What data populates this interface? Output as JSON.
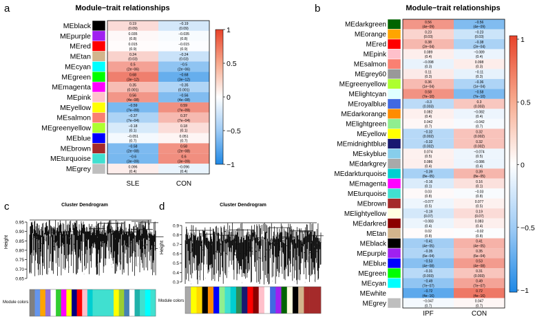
{
  "panels": {
    "a": {
      "letter": "a",
      "title": "Module−trait relationships",
      "columns": [
        "SLE",
        "CON"
      ],
      "legend_ticks": [
        "1",
        "0.5",
        "0",
        "−0.5",
        "−1"
      ],
      "rows": [
        {
          "module": "MEblack",
          "color": "#000000",
          "v": [
            [
              0.19,
              "0.19",
              "(0.09)"
            ],
            [
              -0.19,
              "−0.19",
              "(0.09)"
            ]
          ]
        },
        {
          "module": "MEpurple",
          "color": "#a020f0",
          "v": [
            [
              0.035,
              "0.035",
              "(0.8)"
            ],
            [
              -0.035,
              "−0.035",
              "(0.8)"
            ]
          ]
        },
        {
          "module": "MEred",
          "color": "#ff0000",
          "v": [
            [
              0.015,
              "0.015",
              "(0.9)"
            ],
            [
              -0.015,
              "−0.015",
              "(0.9)"
            ]
          ]
        },
        {
          "module": "MEtan",
          "color": "#d2b48c",
          "v": [
            [
              0.24,
              "0.24",
              "(0.03)"
            ],
            [
              -0.24,
              "−0.24",
              "(0.03)"
            ]
          ]
        },
        {
          "module": "MEcyan",
          "color": "#00ffff",
          "v": [
            [
              0.5,
              "0.5",
              "(2e−06)"
            ],
            [
              -0.5,
              "−0.5",
              "(2e−06)"
            ]
          ]
        },
        {
          "module": "MEgreen",
          "color": "#00ff00",
          "v": [
            [
              0.68,
              "0.68",
              "(3e−12)"
            ],
            [
              -0.68,
              "−0.68",
              "(3e−12)"
            ]
          ]
        },
        {
          "module": "MEmagenta",
          "color": "#ff00ff",
          "v": [
            [
              0.35,
              "0.35",
              "(0.001)"
            ],
            [
              -0.35,
              "−0.35",
              "(0.001)"
            ]
          ]
        },
        {
          "module": "MEpink",
          "color": "#ffc0cb",
          "v": [
            [
              0.56,
              "0.56",
              "(4e−08)"
            ],
            [
              -0.56,
              "−0.56",
              "(4e−08)"
            ]
          ]
        },
        {
          "module": "MEyellow",
          "color": "#ffff00",
          "v": [
            [
              -0.59,
              "−0.59",
              "(7e−09)"
            ],
            [
              0.59,
              "0.59",
              "(7e−09)"
            ]
          ]
        },
        {
          "module": "MEsalmon",
          "color": "#fa8072",
          "v": [
            [
              -0.37,
              "−0.37",
              "(7e−04)"
            ],
            [
              0.37,
              "0.37",
              "(7e−04)"
            ]
          ]
        },
        {
          "module": "MEgreenyellow",
          "color": "#adff2f",
          "v": [
            [
              -0.18,
              "−0.18",
              "(0.1)"
            ],
            [
              0.18,
              "0.18",
              "(0.1)"
            ]
          ]
        },
        {
          "module": "MEblue",
          "color": "#0000ff",
          "v": [
            [
              -0.051,
              "−0.051",
              "(0.7)"
            ],
            [
              0.051,
              "0.051",
              "(0.7)"
            ]
          ]
        },
        {
          "module": "MEbrown",
          "color": "#a52a2a",
          "v": [
            [
              -0.58,
              "−0.58",
              "(2e−08)"
            ],
            [
              0.58,
              "0.58",
              "(2e−08)"
            ]
          ]
        },
        {
          "module": "MEturquoise",
          "color": "#40e0d0",
          "v": [
            [
              -0.6,
              "−0.6",
              "(3e−09)"
            ],
            [
              0.6,
              "0.6",
              "(3e−09)"
            ]
          ]
        },
        {
          "module": "MEgrey",
          "color": "#bebebe",
          "v": [
            [
              0.096,
              "0.096",
              "(0.4)"
            ],
            [
              -0.096,
              "−0.096",
              "(0.4)"
            ]
          ]
        }
      ]
    },
    "b": {
      "letter": "b",
      "title": "Module−trait relationships",
      "columns": [
        "IPF",
        "CON"
      ],
      "legend_ticks": [
        "1",
        "0.5",
        "0",
        "−0.5",
        "−1"
      ],
      "rows": [
        {
          "module": "MEdarkgreen",
          "color": "#006400",
          "v": [
            [
              0.56,
              "0.56",
              "(4e−09)"
            ],
            [
              -0.56,
              "−0.56",
              "(4e−09)"
            ]
          ]
        },
        {
          "module": "MEorange",
          "color": "#ffa500",
          "v": [
            [
              0.23,
              "0.23",
              "(0.03)"
            ],
            [
              -0.23,
              "−0.23",
              "(0.03)"
            ]
          ]
        },
        {
          "module": "MEred",
          "color": "#ff0000",
          "v": [
            [
              0.38,
              "0.38",
              "(2e−04)"
            ],
            [
              -0.38,
              "−0.38",
              "(2e−04)"
            ]
          ]
        },
        {
          "module": "MEpink",
          "color": "#ffc0cb",
          "v": [
            [
              0.089,
              "0.089",
              "(0.4)"
            ],
            [
              -0.089,
              "−0.089",
              "(0.4)"
            ]
          ]
        },
        {
          "module": "MEsalmon",
          "color": "#fa8072",
          "v": [
            [
              -0.098,
              "−0.098",
              "(0.3)"
            ],
            [
              0.098,
              "0.098",
              "(0.3)"
            ]
          ]
        },
        {
          "module": "MEgrey60",
          "color": "#999999",
          "v": [
            [
              0.11,
              "0.11",
              "(0.3)"
            ],
            [
              -0.11,
              "−0.11",
              "(0.3)"
            ]
          ]
        },
        {
          "module": "MEgreenyellow",
          "color": "#adff2f",
          "v": [
            [
              0.36,
              "0.36",
              "(1e−04)"
            ],
            [
              -0.36,
              "−0.36",
              "(1e−04)"
            ]
          ]
        },
        {
          "module": "MElightcyan",
          "color": "#e0ffff",
          "v": [
            [
              0.58,
              "0.58",
              "(7e−10)"
            ],
            [
              -0.58,
              "−0.58",
              "(7e−10)"
            ]
          ]
        },
        {
          "module": "MEroyalblue",
          "color": "#4169e1",
          "v": [
            [
              -0.3,
              "−0.3",
              "(0.003)"
            ],
            [
              0.3,
              "0.3",
              "(0.003)"
            ]
          ]
        },
        {
          "module": "MEdarkorange",
          "color": "#ff8c00",
          "v": [
            [
              0.082,
              "0.082",
              "(0.4)"
            ],
            [
              -0.082,
              "−0.082",
              "(0.4)"
            ]
          ]
        },
        {
          "module": "MElightgreen",
          "color": "#90ee90",
          "v": [
            [
              0.042,
              "0.042",
              "(0.7)"
            ],
            [
              -0.042,
              "−0.042",
              "(0.7)"
            ]
          ]
        },
        {
          "module": "MEyellow",
          "color": "#ffff00",
          "v": [
            [
              -0.32,
              "−0.32",
              "(0.002)"
            ],
            [
              0.32,
              "0.32",
              "(0.002)"
            ]
          ]
        },
        {
          "module": "MEmidnightblue",
          "color": "#191970",
          "v": [
            [
              -0.32,
              "−0.32",
              "(0.002)"
            ],
            [
              0.32,
              "0.32",
              "(0.002)"
            ]
          ]
        },
        {
          "module": "MEskyblue",
          "color": "#87ceeb",
          "v": [
            [
              0.074,
              "0.074",
              "(0.5)"
            ],
            [
              -0.074,
              "−0.074",
              "(0.5)"
            ]
          ]
        },
        {
          "module": "MEdarkgrey",
          "color": "#a9a9a9",
          "v": [
            [
              0.086,
              "0.086",
              "(0.4)"
            ],
            [
              -0.086,
              "−0.086",
              "(0.4)"
            ]
          ]
        },
        {
          "module": "MEdarkturquoise",
          "color": "#00ced1",
          "v": [
            [
              -0.39,
              "−0.39",
              "(8e−05)"
            ],
            [
              0.39,
              "0.39",
              "(8e−05)"
            ]
          ]
        },
        {
          "module": "MEmagenta",
          "color": "#ff00ff",
          "v": [
            [
              -0.16,
              "−0.16",
              "(0.1)"
            ],
            [
              0.16,
              "0.16",
              "(0.1)"
            ]
          ]
        },
        {
          "module": "MEturquoise",
          "color": "#40e0d0",
          "v": [
            [
              0.03,
              "0.03",
              "(0.8)"
            ],
            [
              -0.03,
              "−0.03",
              "(0.8)"
            ]
          ]
        },
        {
          "module": "MEbrown",
          "color": "#a52a2a",
          "v": [
            [
              -0.077,
              "−0.077",
              "(0.5)"
            ],
            [
              0.077,
              "0.077",
              "(0.5)"
            ]
          ]
        },
        {
          "module": "MElightyellow",
          "color": "#ffffe0",
          "v": [
            [
              -0.19,
              "−0.19",
              "(0.07)"
            ],
            [
              0.19,
              "0.19",
              "(0.07)"
            ]
          ]
        },
        {
          "module": "MEdarkred",
          "color": "#8b0000",
          "v": [
            [
              -0.083,
              "−0.083",
              "(0.4)"
            ],
            [
              0.083,
              "0.083",
              "(0.4)"
            ]
          ]
        },
        {
          "module": "MEtan",
          "color": "#d2b48c",
          "v": [
            [
              0.02,
              "0.02",
              "(0.8)"
            ],
            [
              -0.02,
              "−0.02",
              "(0.8)"
            ]
          ]
        },
        {
          "module": "MEblack",
          "color": "#000000",
          "v": [
            [
              -0.41,
              "−0.41",
              "(4e−05)"
            ],
            [
              0.41,
              "0.41",
              "(4e−05)"
            ]
          ]
        },
        {
          "module": "MEpurple",
          "color": "#a020f0",
          "v": [
            [
              -0.35,
              "−0.35",
              "(6e−04)"
            ],
            [
              0.35,
              "0.35",
              "(6e−04)"
            ]
          ]
        },
        {
          "module": "MEblue",
          "color": "#0000ff",
          "v": [
            [
              -0.53,
              "−0.53",
              "(4e−08)"
            ],
            [
              0.53,
              "0.53",
              "(4e−08)"
            ]
          ]
        },
        {
          "module": "MEgreen",
          "color": "#00ff00",
          "v": [
            [
              -0.31,
              "−0.31",
              "(0.003)"
            ],
            [
              0.31,
              "0.31",
              "(0.003)"
            ]
          ]
        },
        {
          "module": "MEcyan",
          "color": "#00ffff",
          "v": [
            [
              -0.49,
              "−0.49",
              "(7e−07)"
            ],
            [
              0.49,
              "0.49",
              "(7e−07)"
            ]
          ]
        },
        {
          "module": "MEwhite",
          "color": "#ffffff",
          "v": [
            [
              -0.72,
              "−0.72",
              "(4e−16)"
            ],
            [
              0.72,
              "0.72",
              "(4e−16)"
            ]
          ]
        },
        {
          "module": "MEgrey",
          "color": "#bebebe",
          "v": [
            [
              -0.047,
              "−0.047",
              "(0.7)"
            ],
            [
              0.047,
              "0.047",
              "(0.7)"
            ]
          ]
        }
      ]
    },
    "c": {
      "letter": "c",
      "title": "Cluster Dendrogram",
      "ylabel": "Height",
      "yticks": [
        "0.95",
        "0.90",
        "0.85",
        "0.80",
        "0.75",
        "0.70",
        "0.65"
      ],
      "module_colors_label": "Module colors",
      "module_color_sequence": [
        "#808080",
        "#6495ed",
        "#ffa500",
        "#9370db",
        "#ffffff",
        "#32cd32",
        "#ff00ff",
        "#ffff00",
        "#000080",
        "#ff0000",
        "#ffc0cb",
        "#00ced1",
        "#40e0d0",
        "#40e0d0",
        "#40e0d0",
        "#40e0d0",
        "#ffff00",
        "#9acd32",
        "#4682b4",
        "#ffffff",
        "#20b2aa",
        "#40e0d0",
        "#00ffff",
        "#40e0d0"
      ]
    },
    "d": {
      "letter": "d",
      "title": "Cluster Dendrogram",
      "ylabel": "Height",
      "yticks": [
        "0.9",
        "0.8",
        "0.7",
        "0.6",
        "0.5",
        "0.4",
        "0.3"
      ],
      "module_colors_label": "Module colors",
      "module_color_sequence": [
        "#a9a9a9",
        "#ffff00",
        "#ffd700",
        "#000000",
        "#ff8c00",
        "#0000ff",
        "#90ee90",
        "#40e0d0",
        "#00ced1",
        "#2e8b57",
        "#191970",
        "#ff0000",
        "#8b0000",
        "#ffc0cb",
        "#ffffff",
        "#4169e1",
        "#a020f0",
        "#006400",
        "#ffffe0",
        "#000000",
        "#d2b48c",
        "#a52a2a",
        "#a52a2a",
        "#a52a2a"
      ]
    }
  }
}
